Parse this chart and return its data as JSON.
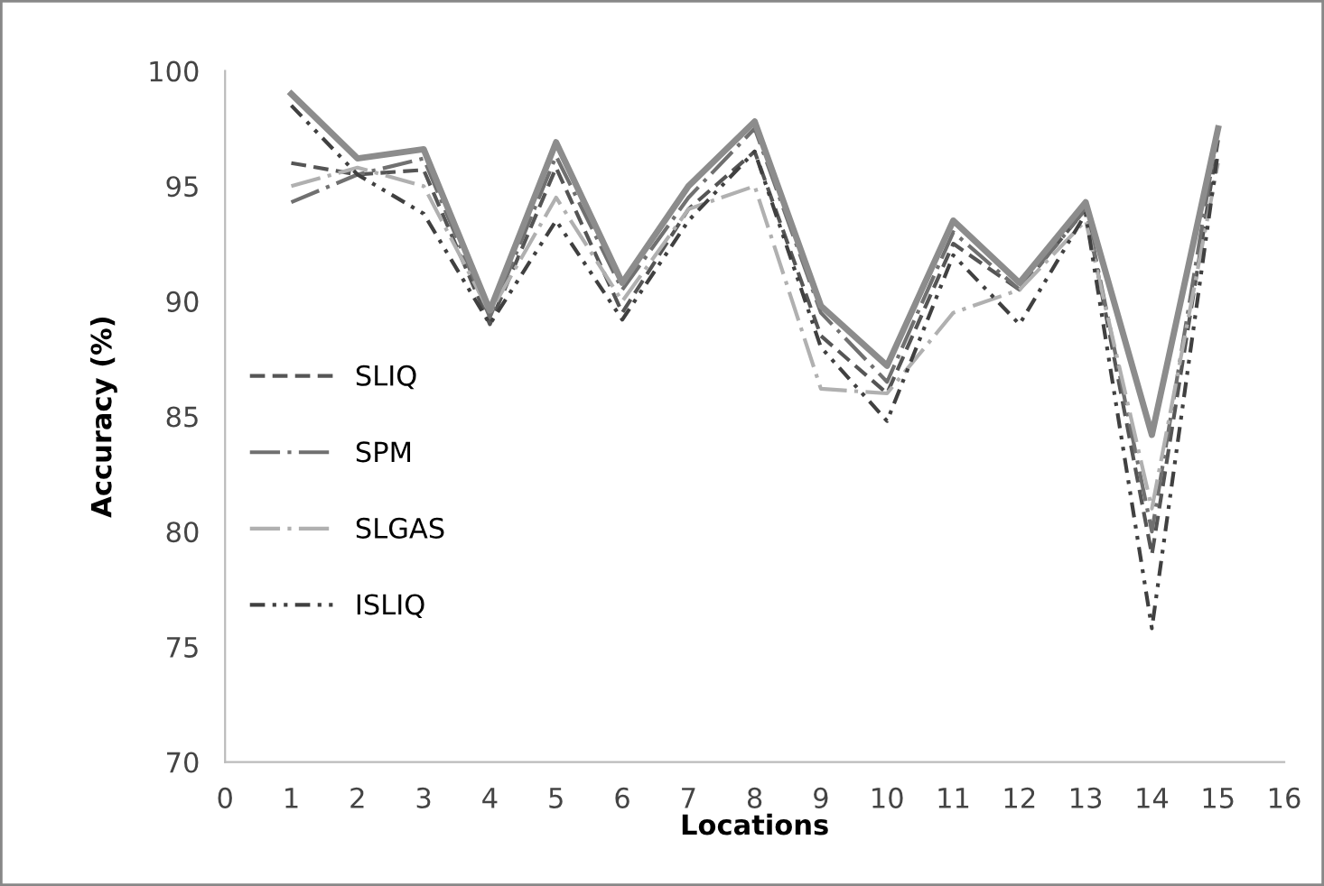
{
  "chart_data": {
    "type": "line",
    "xlabel": "Locations",
    "ylabel": "Accuracy (%)",
    "x": [
      1,
      2,
      3,
      4,
      5,
      6,
      7,
      8,
      9,
      10,
      11,
      12,
      13,
      14,
      15
    ],
    "xlim": [
      0,
      16
    ],
    "xticks": [
      0,
      1,
      2,
      3,
      4,
      5,
      6,
      7,
      8,
      9,
      10,
      11,
      12,
      13,
      14,
      15,
      16
    ],
    "ylim": [
      70,
      100
    ],
    "yticks": [
      70,
      75,
      80,
      85,
      90,
      95,
      100
    ],
    "grid": false,
    "legend": "left",
    "marker": "none",
    "series": [
      {
        "name": "SLIQ",
        "color": "#555555",
        "line_style": "dashed",
        "values": [
          96,
          95.5,
          95.7,
          89,
          95.8,
          89.5,
          94,
          96.5,
          88.5,
          86,
          92.5,
          90.5,
          94,
          79,
          97
        ]
      },
      {
        "name": "SPM",
        "color": "#707070",
        "line_style": "dashdot",
        "values": [
          94.3,
          95.5,
          96.2,
          89.3,
          96.3,
          90.5,
          94.5,
          97.5,
          89.5,
          86.5,
          93,
          90.5,
          94,
          80,
          97.5
        ]
      },
      {
        "name": "SLGAS",
        "color": "#b0b0b0",
        "line_style": "dashdot",
        "values": [
          95,
          95.8,
          95,
          89.5,
          94.5,
          90,
          94,
          95,
          86.2,
          86,
          89.5,
          90.5,
          93.5,
          81,
          96
        ]
      },
      {
        "name": "ISLIQ",
        "color": "#404040",
        "line_style": "dotted",
        "values": [
          98.5,
          95.5,
          93.8,
          89,
          93.5,
          89.2,
          93.5,
          96.5,
          88,
          84.8,
          92,
          89,
          93.8,
          75.8,
          96.5
        ]
      },
      {
        "color": "#8c8c8c",
        "line_style": "solid",
        "values": [
          99,
          96.2,
          96.6,
          89.6,
          96.9,
          90.8,
          95,
          97.8,
          89.8,
          87.2,
          93.5,
          90.8,
          94.3,
          84.2,
          97.5
        ]
      }
    ]
  }
}
